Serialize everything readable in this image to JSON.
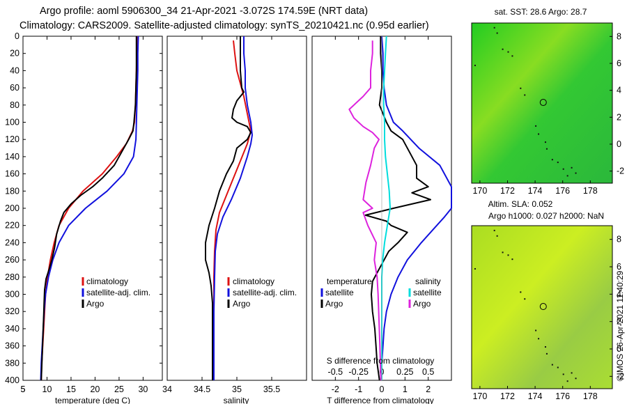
{
  "title": {
    "line1": "Argo profile: aoml 5906300_34 21-Apr-2021 -3.072S 174.59E (NRT data)",
    "line2": "Climatology: CARS2009. Satellite-adjusted climatology: synTS_20210421.nc (0.95d earlier)"
  },
  "colors": {
    "clim": "#dd1111",
    "sat": "#1111dd",
    "argo": "#000000",
    "t_sat": "#00dddd",
    "s_diff": "#dd22dd"
  },
  "maps": {
    "sst_title": "sat. SST: 28.6 Argo: 28.7",
    "sla_title1": "Altim. SLA: 0.052",
    "sla_title2": "Argo h1000: 0.027 h2000: NaN",
    "credit": "©IMOS 26-Apr-2021 11:40:29",
    "x_ticks": [
      170,
      172,
      174,
      176,
      178
    ],
    "y_ticks": [
      8,
      6,
      4,
      2,
      0,
      -2
    ],
    "xlim": [
      169.4,
      179.6
    ],
    "ylim": [
      -2.9,
      9.0
    ],
    "argo_location": [
      174.59,
      3.1
    ]
  },
  "chart_data": [
    {
      "type": "line",
      "id": "temperature",
      "xlabel": "temperature (deg C)",
      "ylabel": "",
      "xlim": [
        5,
        34
      ],
      "ylim": [
        400,
        0
      ],
      "x_ticks": [
        5,
        10,
        15,
        20,
        25,
        30
      ],
      "y_ticks": [
        0,
        20,
        40,
        60,
        80,
        100,
        120,
        140,
        160,
        180,
        200,
        220,
        240,
        260,
        280,
        300,
        320,
        340,
        360,
        380,
        400
      ],
      "legend": [
        "climatology",
        "satellite-adj. clim.",
        "Argo"
      ],
      "series": [
        {
          "name": "climatology",
          "color": "#dd1111",
          "points": [
            [
              28.7,
              0
            ],
            [
              28.7,
              20
            ],
            [
              28.6,
              40
            ],
            [
              28.5,
              60
            ],
            [
              28.4,
              80
            ],
            [
              28.2,
              100
            ],
            [
              27.8,
              110
            ],
            [
              26.5,
              125
            ],
            [
              24.5,
              140
            ],
            [
              21.5,
              160
            ],
            [
              17.5,
              180
            ],
            [
              14.5,
              200
            ],
            [
              12.5,
              220
            ],
            [
              11.5,
              240
            ],
            [
              10.7,
              260
            ],
            [
              10.1,
              280
            ],
            [
              9.7,
              300
            ],
            [
              9.5,
              320
            ],
            [
              9.3,
              340
            ],
            [
              9.1,
              360
            ],
            [
              8.9,
              380
            ],
            [
              8.8,
              400
            ]
          ]
        },
        {
          "name": "satellite-adj. clim.",
          "color": "#1111dd",
          "points": [
            [
              29.0,
              0
            ],
            [
              28.9,
              20
            ],
            [
              28.9,
              40
            ],
            [
              28.8,
              60
            ],
            [
              28.7,
              80
            ],
            [
              28.6,
              100
            ],
            [
              28.5,
              120
            ],
            [
              28.0,
              140
            ],
            [
              26.0,
              160
            ],
            [
              22.5,
              180
            ],
            [
              18.0,
              200
            ],
            [
              14.5,
              220
            ],
            [
              12.5,
              240
            ],
            [
              11.2,
              260
            ],
            [
              10.3,
              280
            ],
            [
              9.7,
              300
            ],
            [
              9.4,
              320
            ],
            [
              9.2,
              340
            ],
            [
              9.0,
              360
            ],
            [
              8.8,
              380
            ],
            [
              8.7,
              400
            ]
          ]
        },
        {
          "name": "Argo",
          "color": "#000000",
          "points": [
            [
              28.6,
              0
            ],
            [
              28.6,
              20
            ],
            [
              28.6,
              40
            ],
            [
              28.5,
              60
            ],
            [
              28.4,
              80
            ],
            [
              28.1,
              100
            ],
            [
              27.9,
              110
            ],
            [
              27.0,
              120
            ],
            [
              25.5,
              135
            ],
            [
              24.0,
              150
            ],
            [
              21.5,
              165
            ],
            [
              19.5,
              175
            ],
            [
              17.0,
              185
            ],
            [
              15.0,
              195
            ],
            [
              13.5,
              205
            ],
            [
              12.8,
              215
            ],
            [
              12.0,
              230
            ],
            [
              11.6,
              245
            ],
            [
              11.0,
              260
            ],
            [
              10.5,
              270
            ],
            [
              9.8,
              282
            ],
            [
              9.5,
              295
            ],
            [
              9.4,
              310
            ],
            [
              9.3,
              325
            ],
            [
              9.2,
              340
            ],
            [
              9.1,
              355
            ],
            [
              9.0,
              370
            ],
            [
              8.9,
              385
            ],
            [
              8.8,
              400
            ]
          ]
        }
      ]
    },
    {
      "type": "line",
      "id": "salinity",
      "xlabel": "salinity",
      "xlim": [
        34,
        36
      ],
      "ylim": [
        400,
        0
      ],
      "x_ticks": [
        34.5,
        35,
        35.5
      ],
      "legend": [
        "climatology",
        "satellite-adj. clim.",
        "Argo"
      ],
      "series": [
        {
          "name": "climatology",
          "color": "#dd1111",
          "points": [
            [
              34.95,
              5
            ],
            [
              34.97,
              20
            ],
            [
              35.0,
              40
            ],
            [
              35.05,
              55
            ],
            [
              35.1,
              70
            ],
            [
              35.15,
              90
            ],
            [
              35.2,
              110
            ],
            [
              35.15,
              125
            ],
            [
              35.05,
              145
            ],
            [
              34.95,
              165
            ],
            [
              34.85,
              185
            ],
            [
              34.75,
              205
            ],
            [
              34.7,
              225
            ],
            [
              34.68,
              250
            ],
            [
              34.67,
              280
            ],
            [
              34.67,
              320
            ],
            [
              34.67,
              360
            ],
            [
              34.67,
              400
            ]
          ]
        },
        {
          "name": "satellite-adj. clim.",
          "color": "#1111dd",
          "points": [
            [
              35.1,
              0
            ],
            [
              35.1,
              20
            ],
            [
              35.12,
              40
            ],
            [
              35.12,
              60
            ],
            [
              35.15,
              80
            ],
            [
              35.2,
              100
            ],
            [
              35.22,
              115
            ],
            [
              35.2,
              125
            ],
            [
              35.15,
              140
            ],
            [
              35.05,
              165
            ],
            [
              34.92,
              190
            ],
            [
              34.8,
              210
            ],
            [
              34.72,
              230
            ],
            [
              34.69,
              250
            ],
            [
              34.68,
              280
            ],
            [
              34.67,
              320
            ],
            [
              34.67,
              360
            ],
            [
              34.67,
              400
            ]
          ]
        },
        {
          "name": "Argo",
          "color": "#000000",
          "points": [
            [
              35.05,
              0
            ],
            [
              35.05,
              20
            ],
            [
              35.05,
              40
            ],
            [
              35.07,
              60
            ],
            [
              35.1,
              65
            ],
            [
              35.0,
              75
            ],
            [
              34.95,
              85
            ],
            [
              34.93,
              95
            ],
            [
              35.0,
              100
            ],
            [
              35.15,
              105
            ],
            [
              35.2,
              112
            ],
            [
              35.15,
              120
            ],
            [
              35.0,
              130
            ],
            [
              34.95,
              145
            ],
            [
              34.85,
              160
            ],
            [
              34.75,
              180
            ],
            [
              34.68,
              200
            ],
            [
              34.6,
              220
            ],
            [
              34.55,
              240
            ],
            [
              34.55,
              260
            ],
            [
              34.6,
              275
            ],
            [
              34.63,
              290
            ],
            [
              34.65,
              310
            ],
            [
              34.65,
              340
            ],
            [
              34.65,
              370
            ],
            [
              34.65,
              400
            ]
          ]
        }
      ]
    },
    {
      "type": "line",
      "id": "differences",
      "xlabel": "T difference from climatology",
      "xlabel_top": "S difference from climatology",
      "xlim": [
        -3,
        3
      ],
      "ylim": [
        400,
        0
      ],
      "x_ticks": [
        -2,
        -1,
        0,
        1,
        2
      ],
      "x_tick_labels": [
        "-2",
        "-1",
        "0",
        "1",
        "2"
      ],
      "s_ticks": [
        -0.5,
        -0.25,
        0,
        0.25,
        0.5
      ],
      "s_tick_labels": [
        "-0.5",
        "-0.25",
        "0",
        "0.25",
        "0.5"
      ],
      "s_lim": [
        -0.75,
        0.75
      ],
      "legend_temperature": {
        "header": "temperature",
        "items": [
          "satellite",
          "Argo"
        ]
      },
      "legend_salinity": {
        "header": "salinity",
        "items": [
          "satellite",
          "Argo"
        ]
      },
      "series": [
        {
          "name": "T satellite",
          "color": "#1111dd",
          "points": [
            [
              0.0,
              0
            ],
            [
              0.05,
              20
            ],
            [
              0.05,
              40
            ],
            [
              0.1,
              60
            ],
            [
              0.2,
              80
            ],
            [
              0.5,
              100
            ],
            [
              0.9,
              110
            ],
            [
              1.6,
              130
            ],
            [
              2.5,
              150
            ],
            [
              3.0,
              175
            ],
            [
              3.0,
              200
            ],
            [
              2.7,
              210
            ],
            [
              2.2,
              225
            ],
            [
              1.7,
              240
            ],
            [
              1.1,
              260
            ],
            [
              0.7,
              280
            ],
            [
              0.4,
              300
            ],
            [
              0.2,
              320
            ],
            [
              0.1,
              340
            ],
            [
              0.05,
              360
            ],
            [
              0.0,
              380
            ],
            [
              0.0,
              400
            ]
          ]
        },
        {
          "name": "T Argo",
          "color": "#000000",
          "points": [
            [
              -0.05,
              0
            ],
            [
              -0.05,
              20
            ],
            [
              0.0,
              40
            ],
            [
              0.0,
              60
            ],
            [
              -0.1,
              80
            ],
            [
              0.2,
              100
            ],
            [
              0.4,
              110
            ],
            [
              0.9,
              120
            ],
            [
              1.2,
              135
            ],
            [
              1.5,
              150
            ],
            [
              1.5,
              165
            ],
            [
              2.0,
              175
            ],
            [
              1.3,
              182
            ],
            [
              2.1,
              190
            ],
            [
              0.5,
              200
            ],
            [
              -0.7,
              208
            ],
            [
              0.2,
              215
            ],
            [
              0.4,
              220
            ],
            [
              1.1,
              228
            ],
            [
              0.7,
              240
            ],
            [
              0.3,
              250
            ],
            [
              0.0,
              265
            ],
            [
              -0.2,
              275
            ],
            [
              -0.4,
              285
            ],
            [
              -0.45,
              300
            ],
            [
              -0.4,
              320
            ],
            [
              -0.3,
              340
            ],
            [
              -0.25,
              360
            ],
            [
              -0.2,
              380
            ],
            [
              -0.1,
              400
            ]
          ]
        },
        {
          "name": "S satellite",
          "color": "#00dddd",
          "points": [
            [
              0.05,
              0
            ],
            [
              0.04,
              20
            ],
            [
              0.03,
              40
            ],
            [
              0.02,
              60
            ],
            [
              0.02,
              80
            ],
            [
              0.03,
              100
            ],
            [
              0.03,
              120
            ],
            [
              0.04,
              140
            ],
            [
              0.06,
              160
            ],
            [
              0.08,
              180
            ],
            [
              0.09,
              200
            ],
            [
              0.06,
              220
            ],
            [
              0.03,
              240
            ],
            [
              0.01,
              260
            ],
            [
              0.0,
              280
            ],
            [
              0.0,
              320
            ],
            [
              0.0,
              360
            ],
            [
              0.0,
              400
            ]
          ]
        },
        {
          "name": "S Argo",
          "color": "#dd22dd",
          "points": [
            [
              -0.1,
              5
            ],
            [
              -0.1,
              20
            ],
            [
              -0.12,
              40
            ],
            [
              -0.12,
              60
            ],
            [
              -0.2,
              70
            ],
            [
              -0.35,
              85
            ],
            [
              -0.3,
              95
            ],
            [
              -0.2,
              105
            ],
            [
              -0.1,
              112
            ],
            [
              -0.03,
              120
            ],
            [
              -0.08,
              130
            ],
            [
              -0.12,
              150
            ],
            [
              -0.17,
              170
            ],
            [
              -0.2,
              190
            ],
            [
              -0.1,
              200
            ],
            [
              -0.2,
              205
            ],
            [
              -0.15,
              220
            ],
            [
              -0.06,
              240
            ],
            [
              -0.08,
              260
            ],
            [
              -0.05,
              280
            ],
            [
              -0.04,
              300
            ],
            [
              -0.03,
              330
            ],
            [
              -0.02,
              360
            ],
            [
              -0.01,
              400
            ]
          ]
        }
      ]
    }
  ]
}
